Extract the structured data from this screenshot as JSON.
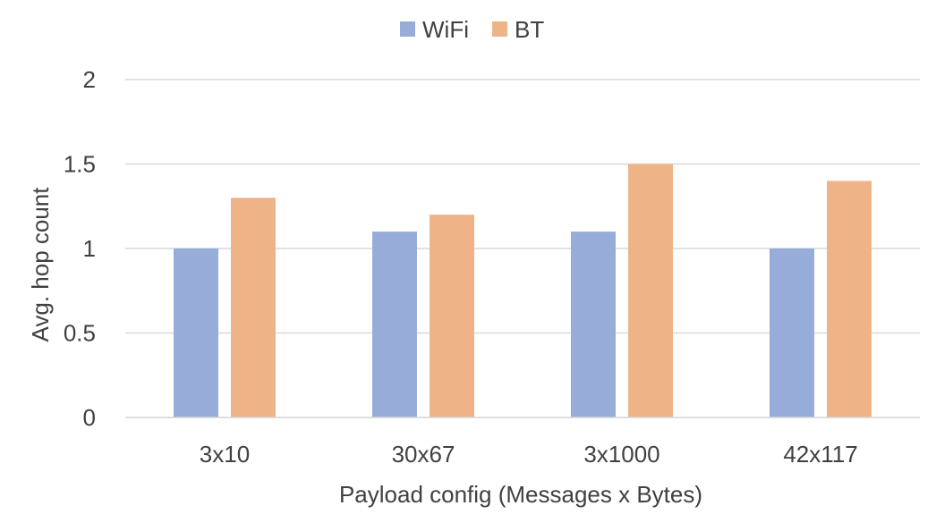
{
  "chart_data": {
    "type": "bar",
    "categories": [
      "3x10",
      "30x67",
      "3x1000",
      "42x117"
    ],
    "series": [
      {
        "name": "WiFi",
        "color": "#97ACD8",
        "values": [
          1.0,
          1.1,
          1.1,
          1.0
        ]
      },
      {
        "name": "BT",
        "color": "#EEB387",
        "values": [
          1.3,
          1.2,
          1.5,
          1.4
        ]
      }
    ],
    "xlabel": "Payload config (Messages x Bytes)",
    "ylabel": "Avg. hop count",
    "ylim": [
      0,
      2
    ],
    "yticks": [
      0,
      0.5,
      1,
      1.5,
      2
    ],
    "ytick_labels": [
      "0",
      "0.5",
      "1",
      "1.5",
      "2"
    ],
    "grid": true,
    "legend": "top-center",
    "colors": {
      "grid": "#D9D9D9",
      "text": "#404040"
    }
  }
}
